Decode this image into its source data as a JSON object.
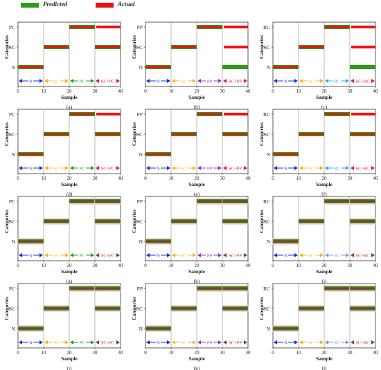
{
  "legend": {
    "predicted_label": "Predicted",
    "actual_label": "Actual",
    "predicted_color": "#2e9a1e",
    "actual_color": "#ee1111"
  },
  "colors": {
    "N": "#1a2bd8",
    "SC": "#f5b820",
    "PC": "#1f9a2a",
    "PP": "#8a3fb5",
    "RC": "#25b0d8",
    "mixed": "#d8203a",
    "mixed_dark": "#8a4020",
    "RC_light": "#7b9be6"
  },
  "chart_data": [
    {
      "panel_label": "(a)",
      "type": "line",
      "xlabel": "Sample",
      "ylabel": "Categories",
      "xlim": [
        0,
        40
      ],
      "xticks": [
        0,
        10,
        20,
        30,
        40
      ],
      "ytick_labels": [
        "N",
        "SC",
        "PC"
      ],
      "segment_labels": [
        "N",
        "SC",
        "PC",
        "SC+PC"
      ],
      "series": [
        {
          "name": "Predicted",
          "segments": [
            {
              "x0": 0,
              "x1": 10,
              "y": "N"
            },
            {
              "x0": 10,
              "x1": 20,
              "y": "SC"
            },
            {
              "x0": 20,
              "x1": 30,
              "y": "PC"
            },
            {
              "x0": 30,
              "x1": 40,
              "y": "SC"
            }
          ]
        },
        {
          "name": "Actual",
          "segments": [
            {
              "x0": 0,
              "x1": 10,
              "y": "N"
            },
            {
              "x0": 10,
              "x1": 20,
              "y": "SC"
            },
            {
              "x0": 20,
              "x1": 30,
              "y": "PC"
            },
            {
              "x0": 30,
              "x1": 40,
              "y": "SC"
            },
            {
              "x0": 30,
              "x1": 40,
              "y": "PC"
            }
          ]
        }
      ]
    },
    {
      "panel_label": "(b)",
      "type": "line",
      "xlabel": "Sample",
      "ylabel": "Categories",
      "xlim": [
        0,
        40
      ],
      "xticks": [
        0,
        10,
        20,
        30,
        40
      ],
      "ytick_labels": [
        "N",
        "SC",
        "PP"
      ],
      "segment_labels": [
        "N",
        "SC",
        "PP",
        "SC+PP"
      ],
      "series": [
        {
          "name": "Predicted",
          "segments": [
            {
              "x0": 0,
              "x1": 10,
              "y": "N"
            },
            {
              "x0": 10,
              "x1": 20,
              "y": "SC"
            },
            {
              "x0": 20,
              "x1": 30,
              "y": "PP"
            },
            {
              "x0": 30,
              "x1": 40,
              "y": "N"
            }
          ]
        },
        {
          "name": "Actual",
          "segments": [
            {
              "x0": 0,
              "x1": 10,
              "y": "N"
            },
            {
              "x0": 10,
              "x1": 20,
              "y": "SC"
            },
            {
              "x0": 20,
              "x1": 30,
              "y": "PP"
            },
            {
              "x0": 30,
              "x1": 40,
              "y": "SC"
            },
            {
              "x0": 30,
              "x1": 40,
              "y": "PP"
            }
          ]
        }
      ]
    },
    {
      "panel_label": "(c)",
      "type": "line",
      "xlabel": "Sample",
      "ylabel": "Categories",
      "xlim": [
        0,
        40
      ],
      "xticks": [
        0,
        10,
        20,
        30,
        40
      ],
      "ytick_labels": [
        "N",
        "SC",
        "RC"
      ],
      "segment_labels": [
        "N",
        "SC",
        "RC",
        "SC+RC"
      ],
      "series": [
        {
          "name": "Predicted",
          "segments": [
            {
              "x0": 0,
              "x1": 10,
              "y": "N"
            },
            {
              "x0": 10,
              "x1": 20,
              "y": "SC"
            },
            {
              "x0": 20,
              "x1": 30,
              "y": "RC"
            },
            {
              "x0": 30,
              "x1": 40,
              "y": "N"
            }
          ]
        },
        {
          "name": "Actual",
          "segments": [
            {
              "x0": 0,
              "x1": 10,
              "y": "N"
            },
            {
              "x0": 10,
              "x1": 20,
              "y": "SC"
            },
            {
              "x0": 20,
              "x1": 30,
              "y": "RC"
            },
            {
              "x0": 30,
              "x1": 40,
              "y": "SC"
            },
            {
              "x0": 30,
              "x1": 40,
              "y": "RC"
            }
          ]
        }
      ]
    },
    {
      "panel_label": "(d)",
      "type": "line",
      "xlabel": "Sample",
      "ylabel": "Categories",
      "xlim": [
        0,
        40
      ],
      "xticks": [
        0,
        10,
        20,
        30,
        40
      ],
      "ytick_labels": [
        "N",
        "SC",
        "PC"
      ],
      "segment_labels": [
        "N",
        "SC",
        "PC",
        "SC+PC"
      ],
      "series": [
        {
          "name": "Predicted",
          "segments": [
            {
              "x0": 0,
              "x1": 10,
              "y": "N"
            },
            {
              "x0": 10,
              "x1": 20,
              "y": "SC"
            },
            {
              "x0": 20,
              "x1": 30,
              "y": "PC"
            },
            {
              "x0": 30,
              "x1": 40,
              "y": "SC"
            }
          ]
        },
        {
          "name": "Actual",
          "segments": [
            {
              "x0": 0,
              "x1": 10,
              "y": "N"
            },
            {
              "x0": 10,
              "x1": 20,
              "y": "SC"
            },
            {
              "x0": 20,
              "x1": 30,
              "y": "PC"
            },
            {
              "x0": 30,
              "x1": 40,
              "y": "SC"
            },
            {
              "x0": 30,
              "x1": 40,
              "y": "PC"
            }
          ]
        }
      ]
    },
    {
      "panel_label": "(e)",
      "type": "line",
      "xlabel": "Sample",
      "ylabel": "Categories",
      "xlim": [
        0,
        40
      ],
      "xticks": [
        0,
        10,
        20,
        30,
        40
      ],
      "ytick_labels": [
        "N",
        "SC",
        "PP"
      ],
      "segment_labels": [
        "N",
        "SC",
        "PP",
        "SC+PP"
      ],
      "series": [
        {
          "name": "Predicted",
          "segments": [
            {
              "x0": 0,
              "x1": 10,
              "y": "N"
            },
            {
              "x0": 10,
              "x1": 20,
              "y": "SC"
            },
            {
              "x0": 20,
              "x1": 30,
              "y": "PP"
            },
            {
              "x0": 30,
              "x1": 40,
              "y": "SC"
            }
          ]
        },
        {
          "name": "Actual",
          "segments": [
            {
              "x0": 0,
              "x1": 10,
              "y": "N"
            },
            {
              "x0": 10,
              "x1": 20,
              "y": "SC"
            },
            {
              "x0": 20,
              "x1": 30,
              "y": "PP"
            },
            {
              "x0": 30,
              "x1": 40,
              "y": "SC"
            },
            {
              "x0": 30,
              "x1": 40,
              "y": "PP"
            }
          ]
        }
      ]
    },
    {
      "panel_label": "(f)",
      "type": "line",
      "xlabel": "Sample",
      "ylabel": "Categories",
      "xlim": [
        0,
        40
      ],
      "xticks": [
        0,
        10,
        20,
        30,
        40
      ],
      "ytick_labels": [
        "N",
        "SC",
        "RC"
      ],
      "segment_labels": [
        "N",
        "SC",
        "RC",
        "SC+RC"
      ],
      "series": [
        {
          "name": "Predicted",
          "segments": [
            {
              "x0": 0,
              "x1": 10,
              "y": "N"
            },
            {
              "x0": 10,
              "x1": 20,
              "y": "SC"
            },
            {
              "x0": 20,
              "x1": 30,
              "y": "RC"
            },
            {
              "x0": 30,
              "x1": 40,
              "y": "SC"
            }
          ]
        },
        {
          "name": "Actual",
          "segments": [
            {
              "x0": 0,
              "x1": 10,
              "y": "N"
            },
            {
              "x0": 10,
              "x1": 20,
              "y": "SC"
            },
            {
              "x0": 20,
              "x1": 30,
              "y": "RC"
            },
            {
              "x0": 30,
              "x1": 40,
              "y": "SC"
            },
            {
              "x0": 30,
              "x1": 40,
              "y": "RC"
            }
          ]
        }
      ]
    },
    {
      "panel_label": "(g)",
      "type": "line",
      "xlabel": "Sample",
      "ylabel": "Categories",
      "xlim": [
        0,
        40
      ],
      "xticks": [
        0,
        10,
        20,
        30,
        40
      ],
      "ytick_labels": [
        "N",
        "SC",
        "PC"
      ],
      "segment_labels": [
        "N",
        "SC",
        "PC",
        "SC+PC"
      ],
      "series": [
        {
          "name": "Predicted",
          "segments": [
            {
              "x0": 0,
              "x1": 10,
              "y": "N"
            },
            {
              "x0": 10,
              "x1": 20,
              "y": "SC"
            },
            {
              "x0": 20,
              "x1": 30,
              "y": "PC"
            },
            {
              "x0": 30,
              "x1": 40,
              "y": "SC"
            },
            {
              "x0": 30,
              "x1": 40,
              "y": "PC"
            }
          ]
        },
        {
          "name": "Actual",
          "segments": [
            {
              "x0": 0,
              "x1": 10,
              "y": "N"
            },
            {
              "x0": 10,
              "x1": 20,
              "y": "SC"
            },
            {
              "x0": 20,
              "x1": 30,
              "y": "PC"
            },
            {
              "x0": 30,
              "x1": 40,
              "y": "SC"
            },
            {
              "x0": 30,
              "x1": 40,
              "y": "PC"
            }
          ]
        }
      ]
    },
    {
      "panel_label": "(h)",
      "type": "line",
      "xlabel": "Sample",
      "ylabel": "Categories",
      "xlim": [
        0,
        40
      ],
      "xticks": [
        0,
        10,
        20,
        30,
        40
      ],
      "ytick_labels": [
        "N",
        "SC",
        "PP"
      ],
      "segment_labels": [
        "N",
        "SC",
        "PP",
        "SC+PP"
      ],
      "series": [
        {
          "name": "Predicted",
          "segments": [
            {
              "x0": 0,
              "x1": 10,
              "y": "N"
            },
            {
              "x0": 10,
              "x1": 20,
              "y": "SC"
            },
            {
              "x0": 20,
              "x1": 30,
              "y": "PP"
            },
            {
              "x0": 30,
              "x1": 40,
              "y": "SC"
            },
            {
              "x0": 30,
              "x1": 40,
              "y": "PP"
            }
          ]
        },
        {
          "name": "Actual",
          "segments": [
            {
              "x0": 0,
              "x1": 10,
              "y": "N"
            },
            {
              "x0": 10,
              "x1": 20,
              "y": "SC"
            },
            {
              "x0": 20,
              "x1": 30,
              "y": "PP"
            },
            {
              "x0": 30,
              "x1": 40,
              "y": "SC"
            },
            {
              "x0": 30,
              "x1": 40,
              "y": "PP"
            }
          ]
        }
      ]
    },
    {
      "panel_label": "(i)",
      "type": "line",
      "xlabel": "Sample",
      "ylabel": "Categories",
      "xlim": [
        0,
        40
      ],
      "xticks": [
        0,
        10,
        20,
        30,
        40
      ],
      "ytick_labels": [
        "N",
        "SC",
        "RC"
      ],
      "segment_labels": [
        "N",
        "SC",
        "RC",
        "SC+RC"
      ],
      "series": [
        {
          "name": "Predicted",
          "segments": [
            {
              "x0": 0,
              "x1": 10,
              "y": "N"
            },
            {
              "x0": 10,
              "x1": 20,
              "y": "SC"
            },
            {
              "x0": 20,
              "x1": 30,
              "y": "RC"
            },
            {
              "x0": 30,
              "x1": 40,
              "y": "SC"
            },
            {
              "x0": 30,
              "x1": 40,
              "y": "RC"
            }
          ]
        },
        {
          "name": "Actual",
          "segments": [
            {
              "x0": 0,
              "x1": 10,
              "y": "N"
            },
            {
              "x0": 10,
              "x1": 20,
              "y": "SC"
            },
            {
              "x0": 20,
              "x1": 30,
              "y": "RC"
            },
            {
              "x0": 30,
              "x1": 40,
              "y": "SC"
            },
            {
              "x0": 30,
              "x1": 40,
              "y": "RC"
            }
          ]
        }
      ]
    },
    {
      "panel_label": "(j)",
      "type": "line",
      "xlabel": "Sample",
      "ylabel": "Categories",
      "xlim": [
        0,
        40
      ],
      "xticks": [
        0,
        10,
        20,
        30,
        40
      ],
      "ytick_labels": [
        "N",
        "SC",
        "PC"
      ],
      "segment_labels": [
        "N",
        "SC",
        "PC",
        "SC+PC"
      ],
      "series": [
        {
          "name": "Predicted",
          "segments": [
            {
              "x0": 0,
              "x1": 10,
              "y": "N"
            },
            {
              "x0": 10,
              "x1": 20,
              "y": "SC"
            },
            {
              "x0": 20,
              "x1": 30,
              "y": "PC"
            },
            {
              "x0": 30,
              "x1": 40,
              "y": "SC"
            },
            {
              "x0": 30,
              "x1": 40,
              "y": "PC"
            }
          ]
        },
        {
          "name": "Actual",
          "segments": [
            {
              "x0": 0,
              "x1": 10,
              "y": "N"
            },
            {
              "x0": 10,
              "x1": 20,
              "y": "SC"
            },
            {
              "x0": 20,
              "x1": 30,
              "y": "PC"
            },
            {
              "x0": 30,
              "x1": 40,
              "y": "SC"
            },
            {
              "x0": 30,
              "x1": 40,
              "y": "PC"
            }
          ]
        }
      ]
    },
    {
      "panel_label": "(k)",
      "type": "line",
      "xlabel": "Sample",
      "ylabel": "Categories",
      "xlim": [
        0,
        40
      ],
      "xticks": [
        0,
        10,
        20,
        30,
        40
      ],
      "ytick_labels": [
        "N",
        "SC",
        "PP"
      ],
      "segment_labels": [
        "N",
        "SC",
        "PP",
        "SC+PP"
      ],
      "series": [
        {
          "name": "Predicted",
          "segments": [
            {
              "x0": 0,
              "x1": 10,
              "y": "N"
            },
            {
              "x0": 10,
              "x1": 20,
              "y": "SC"
            },
            {
              "x0": 20,
              "x1": 30,
              "y": "PP"
            },
            {
              "x0": 30,
              "x1": 40,
              "y": "SC"
            },
            {
              "x0": 30,
              "x1": 40,
              "y": "PP"
            }
          ]
        },
        {
          "name": "Actual",
          "segments": [
            {
              "x0": 0,
              "x1": 10,
              "y": "N"
            },
            {
              "x0": 10,
              "x1": 20,
              "y": "SC"
            },
            {
              "x0": 20,
              "x1": 30,
              "y": "PP"
            },
            {
              "x0": 30,
              "x1": 40,
              "y": "SC"
            },
            {
              "x0": 30,
              "x1": 40,
              "y": "PP"
            }
          ]
        }
      ]
    },
    {
      "panel_label": "(l)",
      "type": "line",
      "xlabel": "Sample",
      "ylabel": "Categories",
      "xlim": [
        0,
        40
      ],
      "xticks": [
        0,
        10,
        20,
        30,
        40
      ],
      "ytick_labels": [
        "N",
        "SC",
        "RC"
      ],
      "segment_labels": [
        "N",
        "SC",
        "RC",
        "SC+RC"
      ],
      "series": [
        {
          "name": "Predicted",
          "segments": [
            {
              "x0": 0,
              "x1": 10,
              "y": "N"
            },
            {
              "x0": 10,
              "x1": 20,
              "y": "SC"
            },
            {
              "x0": 20,
              "x1": 30,
              "y": "RC"
            },
            {
              "x0": 30,
              "x1": 40,
              "y": "SC"
            },
            {
              "x0": 30,
              "x1": 40,
              "y": "RC"
            }
          ]
        },
        {
          "name": "Actual",
          "segments": [
            {
              "x0": 0,
              "x1": 10,
              "y": "N"
            },
            {
              "x0": 10,
              "x1": 20,
              "y": "SC"
            },
            {
              "x0": 20,
              "x1": 30,
              "y": "RC"
            },
            {
              "x0": 30,
              "x1": 40,
              "y": "SC"
            },
            {
              "x0": 30,
              "x1": 40,
              "y": "RC"
            }
          ]
        }
      ]
    }
  ]
}
